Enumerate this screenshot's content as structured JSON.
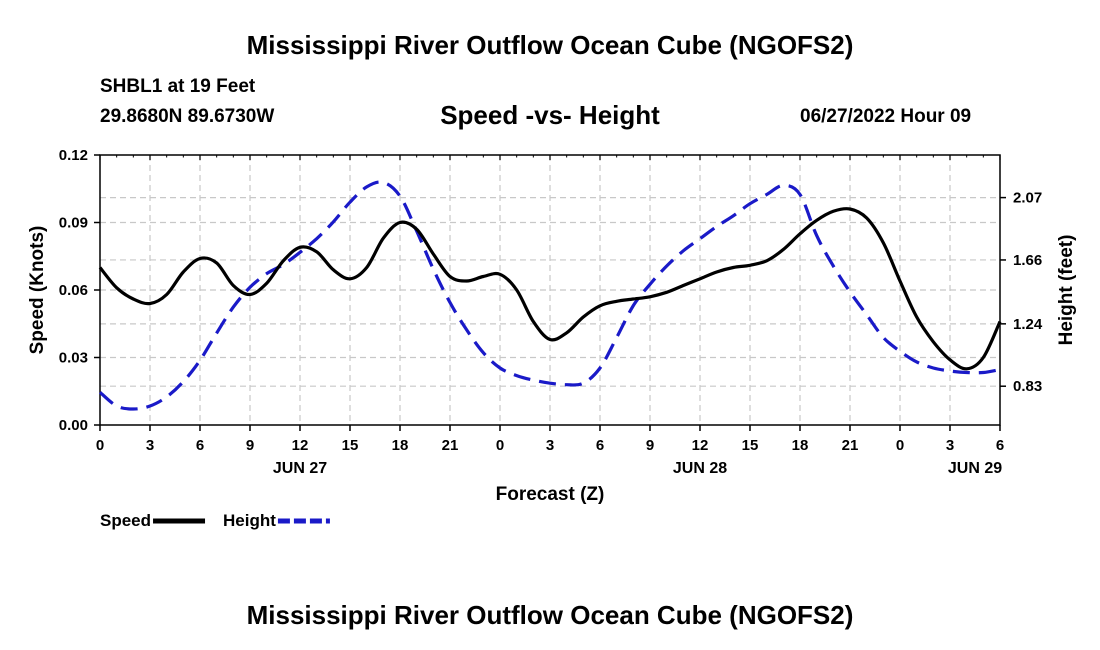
{
  "page": {
    "title": "Mississippi River Outflow Ocean Cube (NGOFS2)",
    "title_repeat": "Mississippi River Outflow Ocean Cube (NGOFS2)",
    "station": "SHBL1 at 19 Feet",
    "coordinates": "29.8680N  89.6730W",
    "datetime": "06/27/2022 Hour 09"
  },
  "chart_data": {
    "type": "line",
    "title": "Speed -vs- Height",
    "xlabel": "Forecast (Z)",
    "ylabel": "Speed (Knots)",
    "y2label": "Height (feet)",
    "xlim": [
      0,
      54
    ],
    "ylim": [
      0,
      0.12
    ],
    "y2lim": [
      0.575,
      2.35
    ],
    "grid": true,
    "x_ticks": [
      0,
      3,
      6,
      9,
      12,
      15,
      18,
      21,
      24,
      27,
      30,
      33,
      36,
      39,
      42,
      45,
      48,
      51,
      54
    ],
    "x_tick_labels": [
      "0",
      "3",
      "6",
      "9",
      "12",
      "15",
      "18",
      "21",
      "0",
      "3",
      "6",
      "9",
      "12",
      "15",
      "18",
      "21",
      "0",
      "3",
      "6"
    ],
    "day_labels": [
      {
        "x": 12,
        "label": "JUN 27"
      },
      {
        "x": 36,
        "label": "JUN 28"
      },
      {
        "x": 52.5,
        "label": "JUN 29"
      }
    ],
    "y_ticks": [
      0,
      0.03,
      0.06,
      0.09,
      0.12
    ],
    "y_tick_labels": [
      "0.00",
      "0.03",
      "0.06",
      "0.09",
      "0.12"
    ],
    "y2_ticks": [
      0.83,
      1.24,
      1.66,
      2.07
    ],
    "y2_tick_labels": [
      "0.83",
      "1.24",
      "1.66",
      "2.07"
    ],
    "legend": [
      {
        "name": "Speed",
        "color": "#000000",
        "dashed": false
      },
      {
        "name": "Height",
        "color": "#1a1ac8",
        "dashed": true
      }
    ],
    "series": [
      {
        "name": "Speed",
        "axis": "left",
        "color": "#000000",
        "dashed": false,
        "x": [
          0,
          1,
          2,
          3,
          4,
          5,
          6,
          7,
          8,
          9,
          10,
          11,
          12,
          13,
          14,
          15,
          16,
          17,
          18,
          19,
          20,
          21,
          22,
          23,
          24,
          25,
          26,
          27,
          28,
          29,
          30,
          31,
          32,
          33,
          34,
          35,
          36,
          37,
          38,
          39,
          40,
          41,
          42,
          43,
          44,
          45,
          46,
          47,
          48,
          49,
          50,
          51,
          52,
          53,
          54
        ],
        "values": [
          0.07,
          0.061,
          0.056,
          0.054,
          0.058,
          0.068,
          0.074,
          0.072,
          0.062,
          0.058,
          0.063,
          0.073,
          0.079,
          0.077,
          0.069,
          0.065,
          0.07,
          0.083,
          0.09,
          0.087,
          0.076,
          0.066,
          0.064,
          0.066,
          0.067,
          0.06,
          0.046,
          0.038,
          0.041,
          0.048,
          0.053,
          0.055,
          0.056,
          0.057,
          0.059,
          0.062,
          0.065,
          0.068,
          0.07,
          0.071,
          0.073,
          0.078,
          0.085,
          0.091,
          0.095,
          0.096,
          0.092,
          0.081,
          0.064,
          0.048,
          0.037,
          0.029,
          0.025,
          0.03,
          0.046
        ]
      },
      {
        "name": "Height",
        "axis": "right",
        "color": "#1a1ac8",
        "dashed": true,
        "x": [
          0,
          1,
          2,
          3,
          4,
          5,
          6,
          7,
          8,
          9,
          10,
          11,
          12,
          13,
          14,
          15,
          16,
          17,
          18,
          19,
          20,
          21,
          22,
          23,
          24,
          25,
          26,
          27,
          28,
          29,
          30,
          31,
          32,
          33,
          34,
          35,
          36,
          37,
          38,
          39,
          40,
          41,
          42,
          43,
          44,
          45,
          46,
          47,
          48,
          49,
          50,
          51,
          52,
          53,
          54
        ],
        "values": [
          0.79,
          0.7,
          0.68,
          0.7,
          0.76,
          0.86,
          1.0,
          1.18,
          1.35,
          1.48,
          1.57,
          1.63,
          1.71,
          1.8,
          1.91,
          2.04,
          2.14,
          2.17,
          2.08,
          1.85,
          1.6,
          1.38,
          1.2,
          1.05,
          0.95,
          0.9,
          0.87,
          0.85,
          0.84,
          0.85,
          0.95,
          1.15,
          1.36,
          1.5,
          1.62,
          1.72,
          1.8,
          1.88,
          1.95,
          2.03,
          2.09,
          2.15,
          2.09,
          1.82,
          1.62,
          1.45,
          1.3,
          1.15,
          1.06,
          0.99,
          0.95,
          0.93,
          0.92,
          0.92,
          0.94
        ]
      }
    ]
  }
}
